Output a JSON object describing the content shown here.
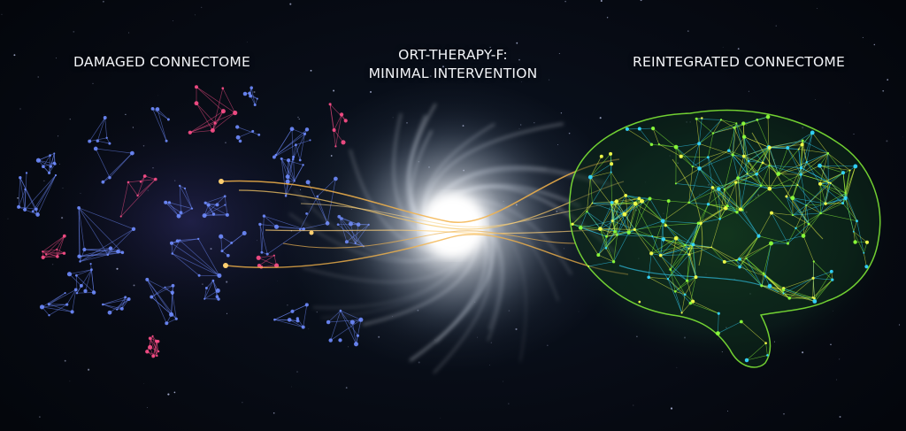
{
  "labels": {
    "left": "DAMAGED CONNECTOME",
    "center_line1": "ORT-THERAPY-F:",
    "center_line2": "MINIMAL INTERVENTION",
    "right": "REINTEGRATED CONNECTOME"
  },
  "colors": {
    "background": "#05070d",
    "damaged_node_blue": "#6f8cff",
    "damaged_node_pink": "#ff4f8a",
    "vortex_core": "#ffffff",
    "connection_gold": "#f3b34a",
    "brain_green": "#8cff3a",
    "brain_yellow": "#f6ff4a",
    "brain_cyan": "#33d6ff"
  }
}
